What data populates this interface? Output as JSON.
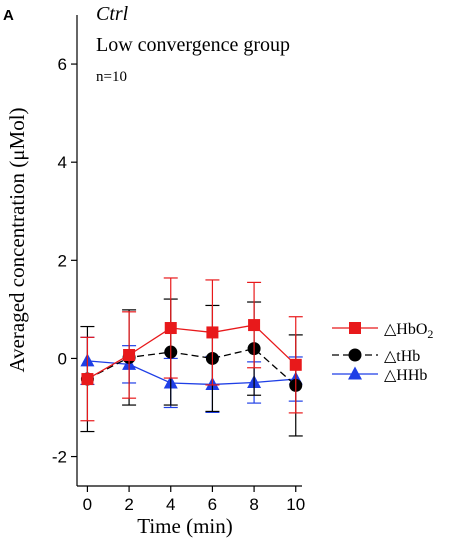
{
  "chart_data": {
    "type": "line",
    "panel_label": "A",
    "title": "Ctrl",
    "subtitle": "Low convergence group",
    "annotation": "n=10",
    "xlabel": "Time (min)",
    "ylabel": "Averaged concentration (μMol)",
    "xlim": [
      -0.5,
      10.3
    ],
    "ylim": [
      -2.6,
      7.0
    ],
    "x_ticks": [
      0,
      2,
      4,
      6,
      8,
      10
    ],
    "y_ticks": [
      -2,
      0,
      2,
      4,
      6
    ],
    "x": [
      0,
      2,
      4,
      6,
      8,
      10
    ],
    "grid": false,
    "legend_position": "right",
    "series": [
      {
        "name": "△HbO",
        "name_sub": "2",
        "marker": "square",
        "line": "solid",
        "color": "#e8191b",
        "values": [
          -0.42,
          0.07,
          0.62,
          0.53,
          0.68,
          -0.13
        ],
        "error": [
          0.85,
          0.88,
          1.02,
          1.07,
          0.87,
          0.98
        ]
      },
      {
        "name": "△tHb",
        "marker": "circle",
        "line": "dashed",
        "color": "#000000",
        "values": [
          -0.42,
          0.02,
          0.13,
          0.0,
          0.2,
          -0.55
        ],
        "error": [
          1.07,
          0.97,
          1.08,
          1.08,
          0.95,
          1.03
        ]
      },
      {
        "name": "△HHb",
        "marker": "triangle",
        "line": "solid",
        "color": "#1f3fe6",
        "values": [
          -0.05,
          -0.12,
          -0.5,
          -0.53,
          -0.49,
          -0.42
        ],
        "error": [
          0.48,
          0.38,
          0.5,
          0.57,
          0.42,
          0.45
        ]
      }
    ]
  }
}
